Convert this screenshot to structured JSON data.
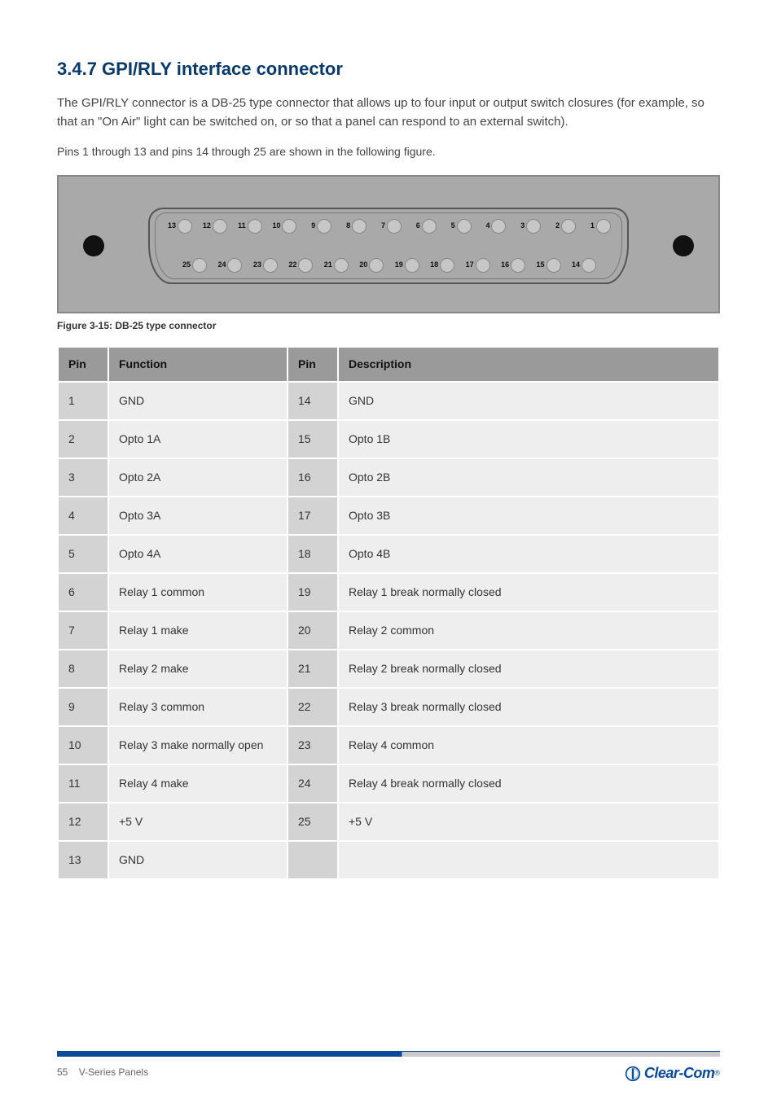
{
  "heading": "3.4.7 GPI/RLY interface connector",
  "intro_text": "The GPI/RLY connector is a DB-25 type connector that allows up to four input or output switch closures (for example, so that an \"On Air\" light can be switched on, or so that a panel can respond to an external switch).",
  "note_text": "Pins 1 through 13 and pins 14 through 25 are shown in the following figure.",
  "figure_caption": "Figure 3-15: DB-25 type connector",
  "connector": {
    "top_pins": [
      13,
      12,
      11,
      10,
      9,
      8,
      7,
      6,
      5,
      4,
      3,
      2,
      1
    ],
    "bottom_pins": [
      25,
      24,
      23,
      22,
      21,
      20,
      19,
      18,
      17,
      16,
      15,
      14
    ],
    "panel_bg": "#a9a9a9",
    "pin_bg": "#c7c7c7",
    "screw_color": "#111111"
  },
  "table": {
    "headers": [
      "Pin",
      "Function",
      "Pin",
      "Description"
    ],
    "rows": [
      [
        "1",
        "GND",
        "14",
        "GND"
      ],
      [
        "2",
        "Opto 1A",
        "15",
        "Opto 1B"
      ],
      [
        "3",
        "Opto 2A",
        "16",
        "Opto 2B"
      ],
      [
        "4",
        "Opto 3A",
        "17",
        "Opto 3B"
      ],
      [
        "5",
        "Opto 4A",
        "18",
        "Opto 4B"
      ],
      [
        "6",
        "Relay 1 common",
        "19",
        "Relay 1 break normally closed"
      ],
      [
        "7",
        "Relay 1 make",
        "20",
        "Relay 2 common"
      ],
      [
        "8",
        "Relay 2 make",
        "21",
        "Relay 2 break normally closed"
      ],
      [
        "9",
        "Relay 3 common",
        "22",
        "Relay 3 break normally closed"
      ],
      [
        "10",
        "Relay 3 make normally open",
        "23",
        "Relay 4 common"
      ],
      [
        "11",
        "Relay 4 make",
        "24",
        "Relay 4 break normally closed"
      ],
      [
        "12",
        "+5 V",
        "25",
        "+5 V"
      ],
      [
        "13",
        "GND",
        "",
        ""
      ]
    ],
    "col_widths": [
      "62px",
      "220px",
      "62px",
      "auto"
    ],
    "header_bg": "#9a9a9a",
    "pin_cell_bg": "#d3d3d3",
    "fn_cell_bg": "#eeeeee"
  },
  "footer": {
    "page": "55",
    "doc": "V-Series Panels",
    "logo_text": "Clear-Com",
    "brand_color": "#0a4a9a"
  }
}
